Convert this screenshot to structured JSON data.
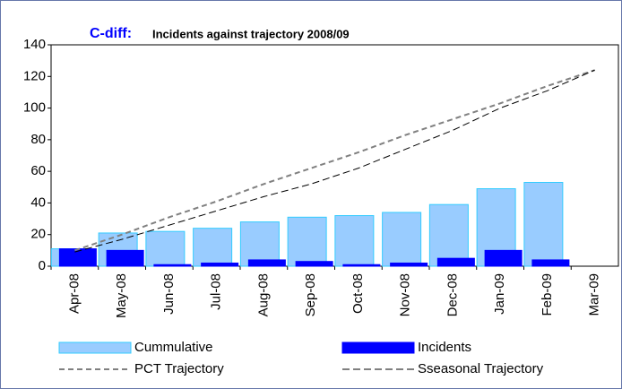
{
  "chart_data": {
    "type": "bar",
    "title": [
      "C-diff:",
      "Incidents against trajectory 2008/09"
    ],
    "categories": [
      "Apr-08",
      "May-08",
      "Jun-08",
      "Jul-08",
      "Aug-08",
      "Sep-08",
      "Oct-08",
      "Nov-08",
      "Dec-08",
      "Jan-09",
      "Feb-09",
      "Mar-09"
    ],
    "series": [
      {
        "name": "Cummulative",
        "type": "bar",
        "color": "#99ccff",
        "values": [
          11,
          21,
          22,
          24,
          28,
          31,
          32,
          34,
          39,
          49,
          53,
          null
        ]
      },
      {
        "name": "Incidents",
        "type": "bar",
        "color": "#0000ff",
        "values": [
          11,
          10,
          1,
          2,
          4,
          3,
          1,
          2,
          5,
          10,
          4,
          null
        ]
      },
      {
        "name": "PCT Trajectory",
        "type": "line",
        "color": "#808080",
        "values": [
          10,
          20,
          31,
          41,
          52,
          62,
          72,
          83,
          93,
          103,
          114,
          124
        ]
      },
      {
        "name": "Sseasonal Trajectory",
        "type": "line",
        "color": "#000000",
        "values": [
          9,
          17,
          26,
          35,
          44,
          52,
          62,
          74,
          86,
          100,
          111,
          124
        ]
      }
    ],
    "ylim": [
      0,
      140
    ],
    "yticks": [
      0,
      20,
      40,
      60,
      80,
      100,
      120,
      140
    ],
    "grid": false,
    "legend": "bottom"
  }
}
